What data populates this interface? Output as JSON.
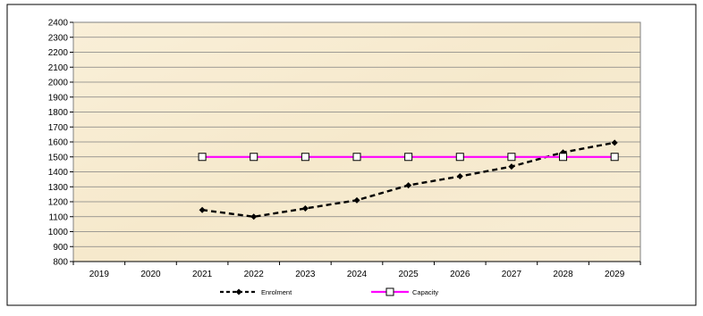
{
  "chart_data": {
    "type": "line",
    "title": "",
    "xlabel": "",
    "ylabel": "",
    "categories": [
      "2019",
      "2020",
      "2021",
      "2022",
      "2023",
      "2024",
      "2025",
      "2026",
      "2027",
      "2028",
      "2029"
    ],
    "ylim": [
      800,
      2400
    ],
    "ytick_step": 100,
    "grid": true,
    "legend_position": "bottom",
    "series": [
      {
        "name": "Enrolment",
        "color": "#000000",
        "line_style": "dashed",
        "marker": "diamond",
        "values": [
          null,
          null,
          1145,
          1100,
          1155,
          1210,
          1310,
          1370,
          1435,
          1530,
          1595
        ]
      },
      {
        "name": "Capacity",
        "color": "#ff00ff",
        "line_style": "solid",
        "marker": "square",
        "values": [
          null,
          null,
          1500,
          1500,
          1500,
          1500,
          1500,
          1500,
          1500,
          1500,
          1500
        ]
      }
    ]
  },
  "colors": {
    "plot_background": "#f7ecd2",
    "grid": "#808080",
    "frame": "#000000"
  }
}
